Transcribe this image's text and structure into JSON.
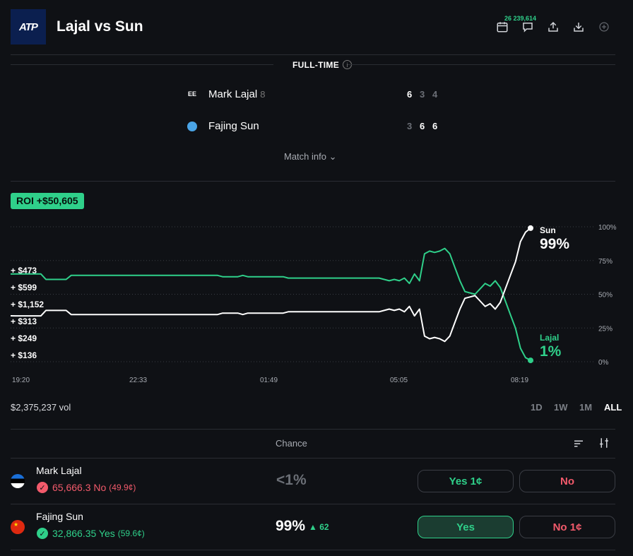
{
  "header": {
    "logo_text": "ATP",
    "title": "Lajal vs Sun",
    "comment_count": "26 239,614",
    "icons": [
      "calendar-icon",
      "comment-icon",
      "share-icon",
      "download-icon",
      "add-icon"
    ]
  },
  "match": {
    "status": "FULL-TIME",
    "players": [
      {
        "flag_code": "EE",
        "name": "Mark Lajal",
        "seed": "8",
        "scores": [
          "6",
          "3",
          "4"
        ],
        "score_winner": [
          true,
          false,
          false
        ]
      },
      {
        "flag_code": "",
        "name": "Fajing Sun",
        "seed": "",
        "scores": [
          "3",
          "6",
          "6"
        ],
        "score_winner": [
          false,
          true,
          true
        ]
      }
    ],
    "match_info_label": "Match info"
  },
  "roi_label": "ROI +$50,605",
  "chart_data": {
    "type": "line",
    "x_ticks": [
      "19:20",
      "22:33",
      "01:49",
      "05:05",
      "08:19"
    ],
    "y_ticks": [
      "100%",
      "75%",
      "50%",
      "25%",
      "0%"
    ],
    "ylim": [
      0,
      100
    ],
    "trade_labels": [
      "+ $473",
      "+ $599",
      "+ $1,152",
      "+ $313",
      "+ $249",
      "+ $136"
    ],
    "series": [
      {
        "name": "Lajal",
        "end_label": "1%",
        "color": "#2fd08a",
        "values": [
          65,
          65,
          65,
          65,
          65,
          65,
          65,
          61,
          61,
          61,
          61,
          61,
          64,
          64,
          64,
          64,
          64,
          64,
          64,
          64,
          64,
          64,
          64,
          64,
          64,
          64,
          64,
          64,
          64,
          64,
          64,
          64,
          64,
          64,
          64,
          64,
          64,
          64,
          64,
          64,
          64,
          64,
          63,
          63,
          63,
          63,
          64,
          63,
          63,
          63,
          63,
          63,
          63,
          63,
          63,
          62,
          62,
          62,
          62,
          62,
          62,
          62,
          62,
          62,
          62,
          62,
          62,
          62,
          62,
          62,
          62,
          62,
          62,
          62,
          61,
          60,
          61,
          60,
          62,
          58,
          65,
          60,
          80,
          82,
          81,
          82,
          84,
          80,
          70,
          60,
          52,
          51,
          50,
          54,
          58,
          56,
          60,
          55,
          45,
          35,
          25,
          10,
          3,
          1
        ]
      },
      {
        "name": "Sun",
        "end_label": "99%",
        "color": "#ffffff",
        "values": [
          34,
          34,
          34,
          34,
          34,
          34,
          34,
          38,
          38,
          38,
          38,
          38,
          35,
          35,
          35,
          35,
          35,
          35,
          35,
          35,
          35,
          35,
          35,
          35,
          35,
          35,
          35,
          35,
          35,
          35,
          35,
          35,
          35,
          35,
          35,
          35,
          35,
          35,
          35,
          35,
          35,
          35,
          36,
          36,
          36,
          36,
          35,
          36,
          36,
          36,
          36,
          36,
          36,
          36,
          36,
          37,
          37,
          37,
          37,
          37,
          37,
          37,
          37,
          37,
          37,
          37,
          37,
          37,
          37,
          37,
          37,
          37,
          37,
          37,
          38,
          39,
          38,
          39,
          37,
          41,
          34,
          39,
          19,
          17,
          18,
          17,
          15,
          19,
          29,
          39,
          47,
          48,
          49,
          45,
          41,
          43,
          39,
          44,
          54,
          64,
          74,
          89,
          96,
          99
        ]
      }
    ]
  },
  "volume": "$2,375,237 vol",
  "ranges": [
    "1D",
    "1W",
    "1M",
    "ALL"
  ],
  "active_range": "ALL",
  "chance_label": "Chance",
  "outcomes": [
    {
      "name": "Mark Lajal",
      "bet": "65,666.3 No",
      "bet_price": "(49.9¢)",
      "bet_color": "#f25a6b",
      "chance": "<1%",
      "chance_color": "#6b6f76",
      "delta": "",
      "yes_label": "Yes 1¢",
      "no_label": "No",
      "yes_active": false
    },
    {
      "name": "Fajing Sun",
      "bet": "32,866.35 Yes",
      "bet_price": "(59.6¢)",
      "bet_color": "#2fd08a",
      "chance": "99%",
      "chance_color": "#ffffff",
      "delta": "▲ 62",
      "yes_label": "Yes",
      "no_label": "No 1¢",
      "yes_active": true
    }
  ]
}
